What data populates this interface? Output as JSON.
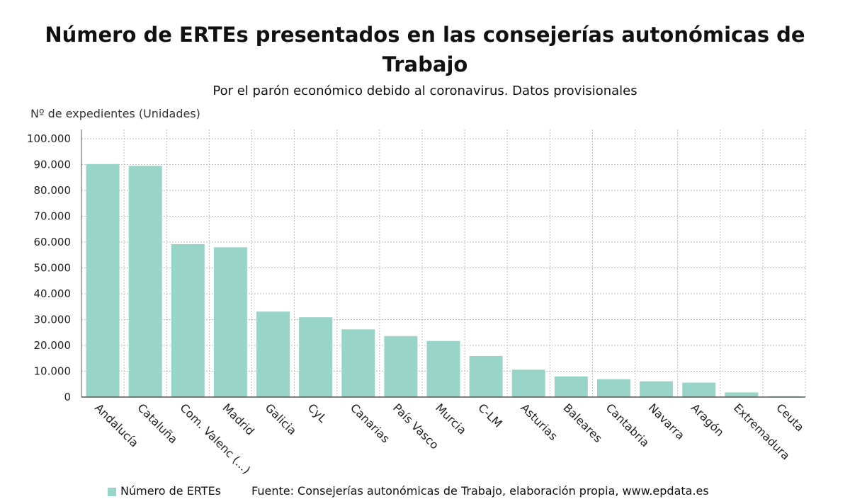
{
  "chart_data": {
    "type": "bar",
    "title": "Número de ERTEs presentados en las consejerías autonómicas de Trabajo",
    "subtitle": "Por el parón económico debido al coronavirus. Datos provisionales",
    "ylabel": "Nº de expedientes (Unidades)",
    "xlabel": "",
    "ylim": [
      0,
      100000
    ],
    "yticks": [
      0,
      10000,
      20000,
      30000,
      40000,
      50000,
      60000,
      70000,
      80000,
      90000,
      100000
    ],
    "ytick_labels": [
      "0",
      "10.000",
      "20.000",
      "30.000",
      "40.000",
      "50.000",
      "60.000",
      "70.000",
      "80.000",
      "90.000",
      "100.000"
    ],
    "grid": true,
    "categories": [
      "Andalucía",
      "Cataluña",
      "Com. Valenc (...)",
      "Madrid",
      "Galicia",
      "CyL",
      "Canarias",
      "País Vasco",
      "Murcia",
      "C-LM",
      "Asturias",
      "Baleares",
      "Cantabria",
      "Navarra",
      "Aragón",
      "Extremadura",
      "Ceuta"
    ],
    "series": [
      {
        "name": "Número de ERTEs",
        "color": "#99d4c9",
        "values": [
          90200,
          89500,
          59200,
          58000,
          33100,
          30900,
          26200,
          23600,
          21700,
          15900,
          10600,
          8000,
          6900,
          6100,
          5600,
          1800,
          300
        ]
      }
    ],
    "legend": "bottom-left"
  },
  "footer": {
    "source": "Fuente: Consejerías autonómicas de Trabajo, elaboración propia, www.epdata.es"
  }
}
